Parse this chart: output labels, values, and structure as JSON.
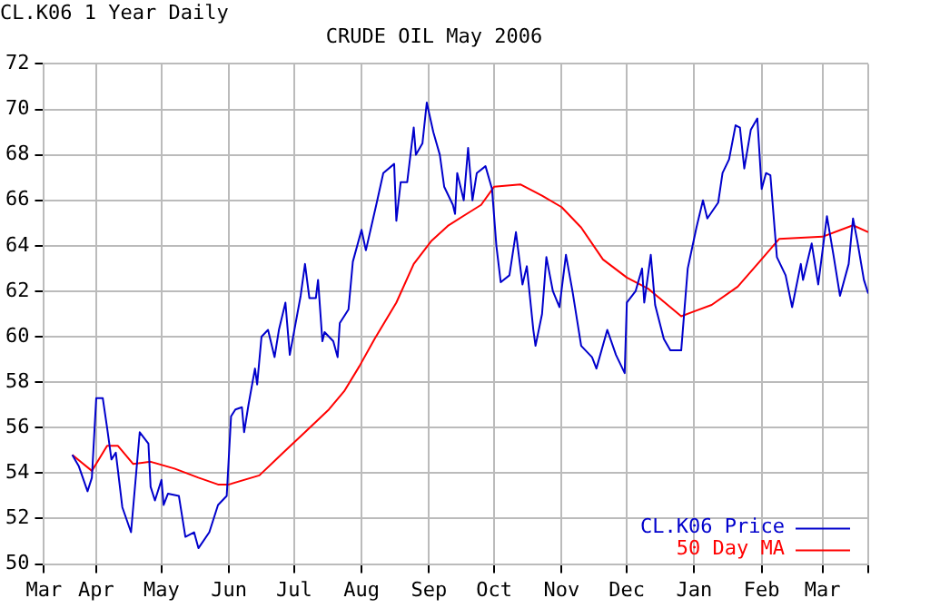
{
  "chart_data": {
    "type": "line",
    "title": "CRUDE OIL May 2006",
    "annotations": [
      "CL.K06 1 Year Daily"
    ],
    "xlim": [
      "2005-03-08",
      "2006-03-22"
    ],
    "xticks": [
      {
        "value": "2005-03-08",
        "label": "Mar"
      },
      {
        "value": "2005-04-01",
        "label": "Apr"
      },
      {
        "value": "2005-05-01",
        "label": "May"
      },
      {
        "value": "2005-06-01",
        "label": "Jun"
      },
      {
        "value": "2005-07-01",
        "label": "Jul"
      },
      {
        "value": "2005-08-01",
        "label": "Aug"
      },
      {
        "value": "2005-09-01",
        "label": "Sep"
      },
      {
        "value": "2005-10-01",
        "label": "Oct"
      },
      {
        "value": "2005-11-01",
        "label": "Nov"
      },
      {
        "value": "2005-12-01",
        "label": "Dec"
      },
      {
        "value": "2006-01-01",
        "label": "Jan"
      },
      {
        "value": "2006-02-01",
        "label": "Feb"
      },
      {
        "value": "2006-03-01",
        "label": "Mar"
      },
      {
        "value": "2006-03-22",
        "label": null
      }
    ],
    "ylim": [
      50,
      72
    ],
    "yticks": [
      50,
      52,
      54,
      56,
      58,
      60,
      62,
      64,
      66,
      68,
      70,
      72
    ],
    "grid": true,
    "legend": "bottom right",
    "series": [
      {
        "name": "CL.K06 Price",
        "color": "#0000cc",
        "x": [
          "2005-03-21",
          "2005-03-24",
          "2005-03-28",
          "2005-03-30",
          "2005-04-01",
          "2005-04-04",
          "2005-04-06",
          "2005-04-08",
          "2005-04-10",
          "2005-04-13",
          "2005-04-17",
          "2005-04-21",
          "2005-04-25",
          "2005-04-26",
          "2005-04-28",
          "2005-05-01",
          "2005-05-02",
          "2005-05-04",
          "2005-05-09",
          "2005-05-12",
          "2005-05-16",
          "2005-05-18",
          "2005-05-23",
          "2005-05-27",
          "2005-05-31",
          "2005-06-02",
          "2005-06-04",
          "2005-06-07",
          "2005-06-08",
          "2005-06-10",
          "2005-06-13",
          "2005-06-14",
          "2005-06-16",
          "2005-06-19",
          "2005-06-22",
          "2005-06-24",
          "2005-06-27",
          "2005-06-29",
          "2005-07-04",
          "2005-07-06",
          "2005-07-08",
          "2005-07-11",
          "2005-07-12",
          "2005-07-14",
          "2005-07-15",
          "2005-07-19",
          "2005-07-21",
          "2005-07-22",
          "2005-07-26",
          "2005-07-28",
          "2005-08-01",
          "2005-08-03",
          "2005-08-08",
          "2005-08-11",
          "2005-08-16",
          "2005-08-17",
          "2005-08-19",
          "2005-08-22",
          "2005-08-25",
          "2005-08-26",
          "2005-08-29",
          "2005-08-31",
          "2005-09-03",
          "2005-09-06",
          "2005-09-08",
          "2005-09-12",
          "2005-09-13",
          "2005-09-14",
          "2005-09-17",
          "2005-09-19",
          "2005-09-21",
          "2005-09-23",
          "2005-09-27",
          "2005-09-30",
          "2005-10-02",
          "2005-10-04",
          "2005-10-08",
          "2005-10-11",
          "2005-10-14",
          "2005-10-16",
          "2005-10-19",
          "2005-10-20",
          "2005-10-23",
          "2005-10-25",
          "2005-10-28",
          "2005-10-31",
          "2005-11-03",
          "2005-11-06",
          "2005-11-10",
          "2005-11-15",
          "2005-11-17",
          "2005-11-22",
          "2005-11-26",
          "2005-11-30",
          "2005-12-01",
          "2005-12-05",
          "2005-12-08",
          "2005-12-09",
          "2005-12-12",
          "2005-12-14",
          "2005-12-18",
          "2005-12-21",
          "2005-12-26",
          "2005-12-29",
          "2006-01-02",
          "2006-01-05",
          "2006-01-07",
          "2006-01-12",
          "2006-01-14",
          "2006-01-17",
          "2006-01-20",
          "2006-01-22",
          "2006-01-24",
          "2006-01-27",
          "2006-01-30",
          "2006-02-01",
          "2006-02-03",
          "2006-02-05",
          "2006-02-08",
          "2006-02-12",
          "2006-02-15",
          "2006-02-19",
          "2006-02-20",
          "2006-02-24",
          "2006-02-27",
          "2006-03-03",
          "2006-03-06",
          "2006-03-09",
          "2006-03-13",
          "2006-03-15",
          "2006-03-17",
          "2006-03-20",
          "2006-03-22"
        ],
        "values": [
          54.8,
          54.3,
          53.2,
          53.8,
          57.3,
          57.3,
          56,
          54.6,
          54.9,
          52.5,
          51.4,
          55.8,
          55.3,
          53.4,
          52.8,
          53.7,
          52.6,
          53.1,
          53,
          51.2,
          51.4,
          50.7,
          51.4,
          52.6,
          53,
          56.5,
          56.8,
          56.9,
          55.8,
          57,
          58.6,
          57.9,
          60,
          60.3,
          59.1,
          60.3,
          61.5,
          59.2,
          61.8,
          63.2,
          61.7,
          61.7,
          62.5,
          59.8,
          60.2,
          59.8,
          59.1,
          60.6,
          61.2,
          63.3,
          64.7,
          63.8,
          65.9,
          67.2,
          67.6,
          65.1,
          66.8,
          66.8,
          69.2,
          68,
          68.5,
          70.3,
          69,
          68,
          66.6,
          65.8,
          65.4,
          67.2,
          66,
          68.3,
          66,
          67.2,
          67.5,
          66.5,
          64,
          62.4,
          62.7,
          64.6,
          62.3,
          63.1,
          60.3,
          59.6,
          61,
          63.5,
          62,
          61.3,
          63.6,
          62,
          59.6,
          59.1,
          58.6,
          60.3,
          59.2,
          58.4,
          61.5,
          62,
          63,
          61.5,
          63.6,
          61.4,
          59.9,
          59.4,
          59.4,
          63,
          64.8,
          66,
          65.2,
          65.9,
          67.2,
          67.8,
          69.3,
          69.2,
          67.4,
          69.1,
          69.6,
          66.5,
          67.2,
          67.1,
          63.5,
          62.7,
          61.3,
          63.2,
          62.5,
          64.1,
          62.3,
          65.3,
          63.6,
          61.8,
          63.2,
          65.2,
          64.2,
          62.5,
          61.9
        ]
      },
      {
        "name": "50 Day MA",
        "color": "#ff0000",
        "x": [
          "2005-03-21",
          "2005-03-30",
          "2005-04-06",
          "2005-04-11",
          "2005-04-18",
          "2005-04-26",
          "2005-05-07",
          "2005-05-18",
          "2005-05-27",
          "2005-06-01",
          "2005-06-15",
          "2005-06-26",
          "2005-07-06",
          "2005-07-17",
          "2005-07-24",
          "2005-07-31",
          "2005-08-07",
          "2005-08-17",
          "2005-08-25",
          "2005-09-02",
          "2005-09-10",
          "2005-09-20",
          "2005-09-25",
          "2005-10-01",
          "2005-10-13",
          "2005-10-23",
          "2005-11-01",
          "2005-11-10",
          "2005-11-20",
          "2005-12-01",
          "2005-12-11",
          "2005-12-26",
          "2006-01-09",
          "2006-01-21",
          "2006-01-31",
          "2006-02-09",
          "2006-03-01",
          "2006-03-15",
          "2006-03-22"
        ],
        "values": [
          54.8,
          54.1,
          55.2,
          55.2,
          54.4,
          54.5,
          54.2,
          53.8,
          53.5,
          53.5,
          53.9,
          54.9,
          55.8,
          56.8,
          57.6,
          58.7,
          59.9,
          61.5,
          63.2,
          64.2,
          64.9,
          65.5,
          65.8,
          66.6,
          66.7,
          66.2,
          65.7,
          64.8,
          63.4,
          62.6,
          62.1,
          60.9,
          61.4,
          62.2,
          63.3,
          64.3,
          64.4,
          64.9,
          64.6
        ]
      }
    ]
  }
}
